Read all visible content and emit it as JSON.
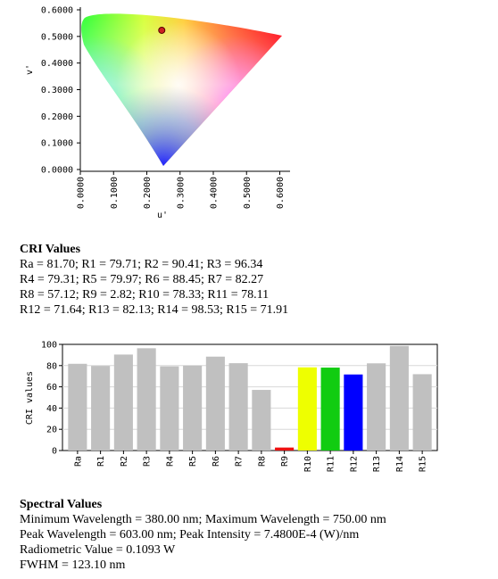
{
  "chromaticity": {
    "type": "scatter",
    "xlabel": "u'",
    "ylabel": "v'",
    "xlim": [
      0,
      0.62
    ],
    "ylim": [
      0,
      0.6
    ],
    "x_ticks": [
      "0.0000",
      "0.1000",
      "0.2000",
      "0.3000",
      "0.4000",
      "0.5000",
      "0.6000"
    ],
    "y_ticks": [
      "0.0000",
      "0.1000",
      "0.2000",
      "0.3000",
      "0.4000",
      "0.5000",
      "0.6000"
    ],
    "point": {
      "u": 0.245,
      "v": 0.523
    },
    "point_color": "#cc2222"
  },
  "cri_section": {
    "title": "CRI Values",
    "lines": [
      "Ra = 81.70; R1 = 79.71; R2 = 90.41; R3 = 96.34",
      "R4 = 79.31; R5 = 79.97; R6 = 88.45; R7 = 82.27",
      "R8 = 57.12; R9 = 2.82; R10 = 78.33; R11 = 78.11",
      "R12 = 71.64; R13 = 82.13; R14 = 98.53; R15 = 71.91"
    ]
  },
  "chart_data": {
    "type": "bar",
    "ylabel": "CRI values",
    "ylim": [
      0,
      100
    ],
    "y_ticks": [
      "0",
      "20",
      "40",
      "60",
      "80",
      "100"
    ],
    "grid": true,
    "categories": [
      "Ra",
      "R1",
      "R2",
      "R3",
      "R4",
      "R5",
      "R6",
      "R7",
      "R8",
      "R9",
      "R10",
      "R11",
      "R12",
      "R13",
      "R14",
      "R15"
    ],
    "values": [
      81.7,
      79.71,
      90.41,
      96.34,
      79.31,
      79.97,
      88.45,
      82.27,
      57.12,
      2.82,
      78.33,
      78.11,
      71.64,
      82.13,
      98.53,
      71.91
    ],
    "colors": [
      "#c0c0c0",
      "#c0c0c0",
      "#c0c0c0",
      "#c0c0c0",
      "#c0c0c0",
      "#c0c0c0",
      "#c0c0c0",
      "#c0c0c0",
      "#c0c0c0",
      "#ee1111",
      "#eeff00",
      "#11cc11",
      "#0000ff",
      "#c0c0c0",
      "#c0c0c0",
      "#c0c0c0"
    ]
  },
  "spectral_section": {
    "title": "Spectral Values",
    "lines": [
      "Minimum Wavelength = 380.00 nm; Maximum Wavelength = 750.00 nm",
      "Peak Wavelength = 603.00 nm; Peak Intensity = 7.4800E-4 (W)/nm",
      "Radiometric Value = 0.1093 W",
      "FWHM = 123.10 nm"
    ]
  }
}
